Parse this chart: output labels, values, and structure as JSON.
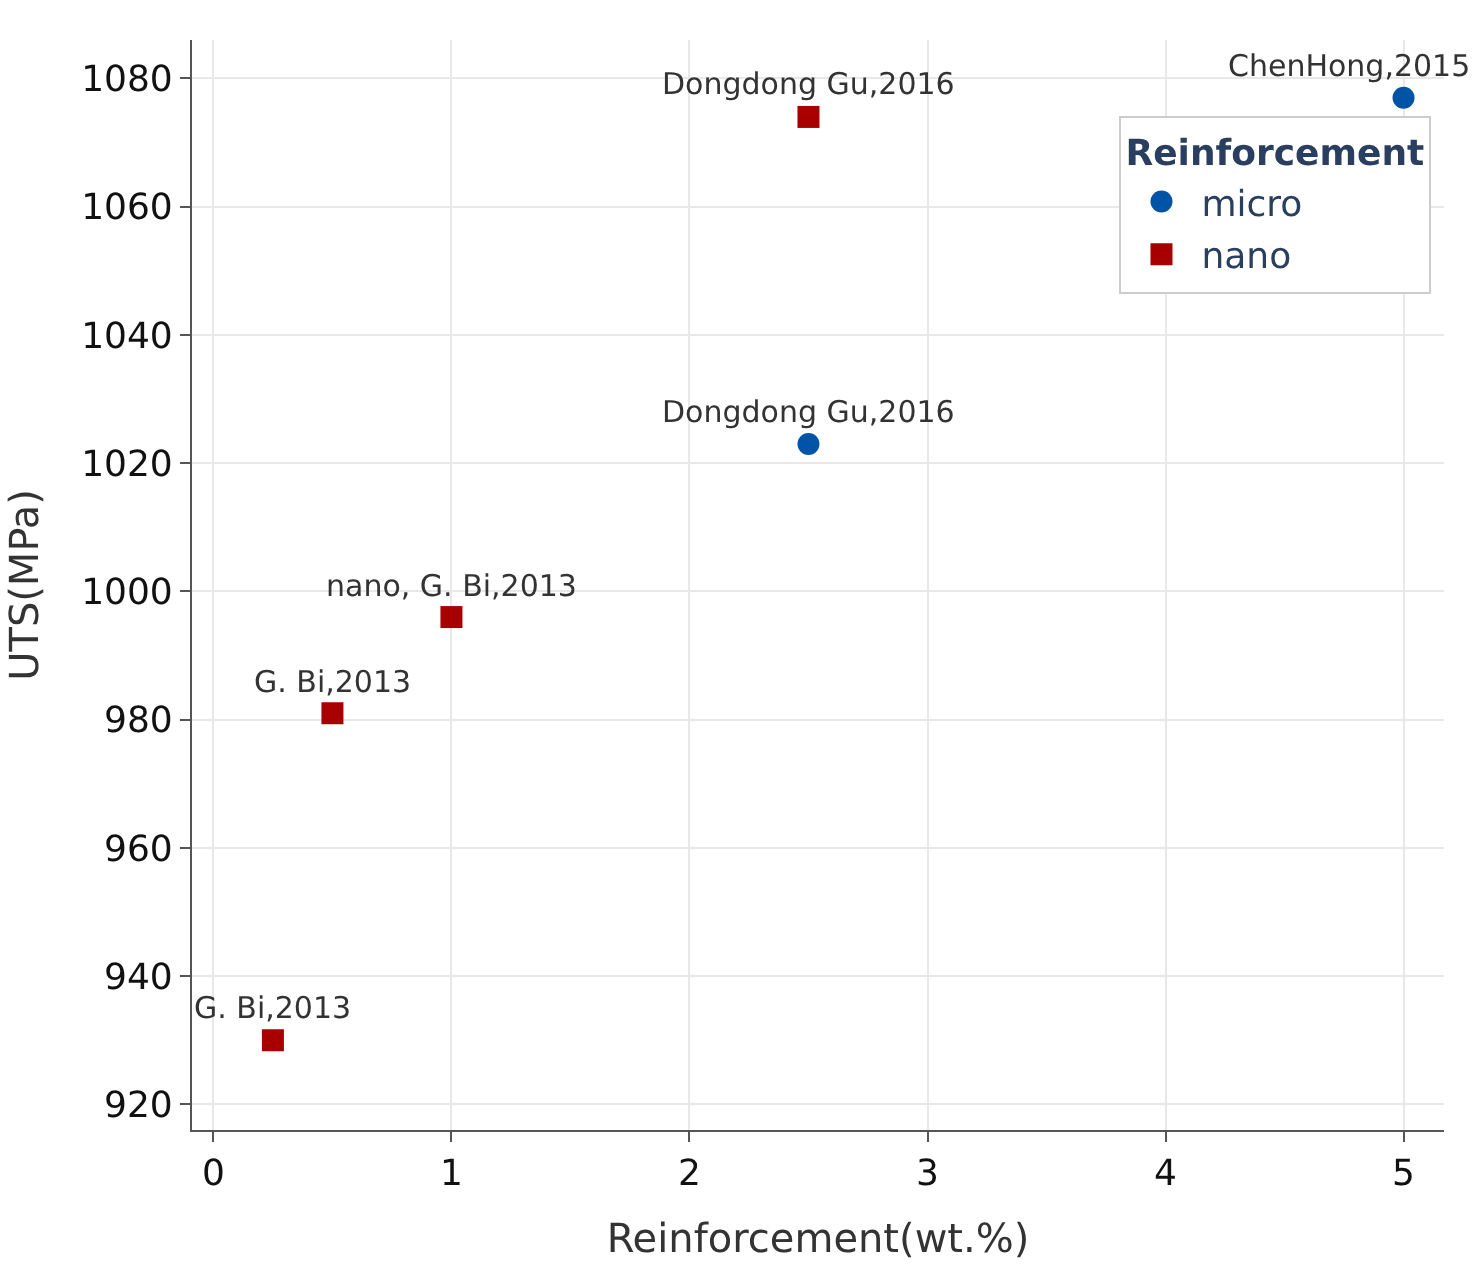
{
  "chart_data": {
    "type": "scatter",
    "xlabel": "Reinforcement(wt.%)",
    "ylabel": "UTS(MPa)",
    "legend_title": "Reinforcement",
    "legend": "top right",
    "grid": true,
    "xlim": [
      -0.09,
      5.17
    ],
    "xticks": [
      0,
      1,
      2,
      3,
      4,
      5
    ],
    "ylim": [
      916,
      1086
    ],
    "yticks": [
      920,
      940,
      960,
      980,
      1000,
      1020,
      1040,
      1060,
      1080
    ],
    "series": [
      {
        "name": "micro",
        "color": "#0054a6",
        "marker": "circle",
        "x": [
          2.5,
          5
        ],
        "values": [
          1023,
          1077
        ]
      },
      {
        "name": "nano",
        "color": "#a80000",
        "marker": "square",
        "x": [
          0.25,
          0.5,
          1,
          2.5
        ],
        "values": [
          930,
          981,
          996,
          1074
        ]
      }
    ],
    "annotations": [
      {
        "text": "ChenHong,2015",
        "x": 5,
        "y": 1077
      },
      {
        "text": "Dongdong Gu,2016",
        "x": 2.5,
        "y": 1074
      },
      {
        "text": "Dongdong Gu,2016",
        "x": 2.5,
        "y": 1023
      },
      {
        "text": "nano, G. Bi,2013",
        "x": 1,
        "y": 996
      },
      {
        "text": "G. Bi,2013",
        "x": 0.5,
        "y": 981
      },
      {
        "text": "G. Bi,2013",
        "x": 0.25,
        "y": 930
      }
    ]
  }
}
